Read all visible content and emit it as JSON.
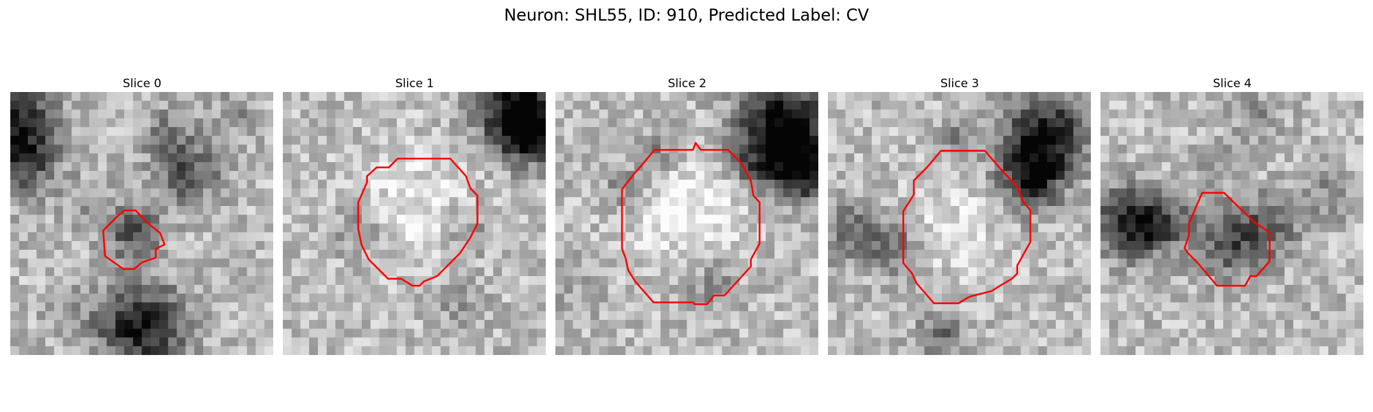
{
  "figure": {
    "title": "Neuron: SHL55, ID: 910, Predicted Label: CV"
  },
  "contour_color": "#ff0000",
  "slices": [
    {
      "label": "Slice 0"
    },
    {
      "label": "Slice 1"
    },
    {
      "label": "Slice 2"
    },
    {
      "label": "Slice 3"
    },
    {
      "label": "Slice 4"
    }
  ]
}
